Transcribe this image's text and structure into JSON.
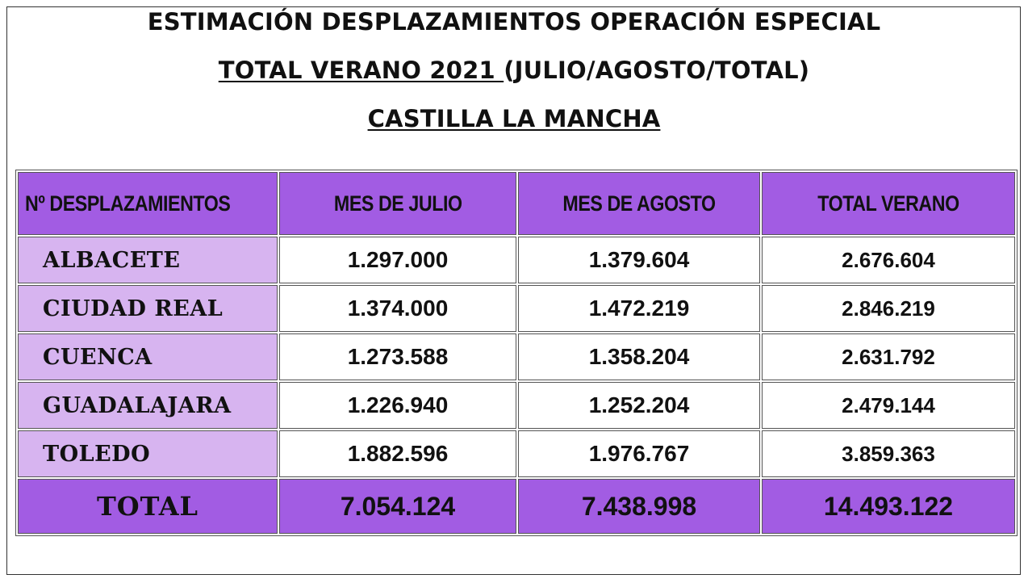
{
  "title": {
    "line1": "ESTIMACIÓN DESPLAZAMIENTOS OPERACIÓN ESPECIAL",
    "line2_underlined": "TOTAL VERANO 2021 ",
    "line2_rest": "(JULIO/AGOSTO/TOTAL)",
    "line3": "CASTILLA LA MANCHA"
  },
  "table": {
    "headers": [
      "Nº DESPLAZAMIENTOS",
      "MES DE JULIO",
      "MES DE AGOSTO",
      "TOTAL VERANO"
    ],
    "rows": [
      {
        "province": "ALBACETE",
        "julio": "1.297.000",
        "agosto": "1.379.604",
        "total": "2.676.604"
      },
      {
        "province": "CIUDAD REAL",
        "julio": "1.374.000",
        "agosto": "1.472.219",
        "total": "2.846.219"
      },
      {
        "province": "CUENCA",
        "julio": "1.273.588",
        "agosto": "1.358.204",
        "total": "2.631.792"
      },
      {
        "province": "GUADALAJARA",
        "julio": "1.226.940",
        "agosto": "1.252.204",
        "total": "2.479.144"
      },
      {
        "province": "TOLEDO",
        "julio": "1.882.596",
        "agosto": "1.976.767",
        "total": "3.859.363"
      }
    ],
    "total_row": {
      "label": "TOTAL",
      "julio": "7.054.124",
      "agosto": "7.438.998",
      "total": "14.493.122"
    }
  },
  "colors": {
    "header_bg": "#a25ce3",
    "province_bg": "#d7b4f0",
    "total_bg": "#a25ce3"
  }
}
